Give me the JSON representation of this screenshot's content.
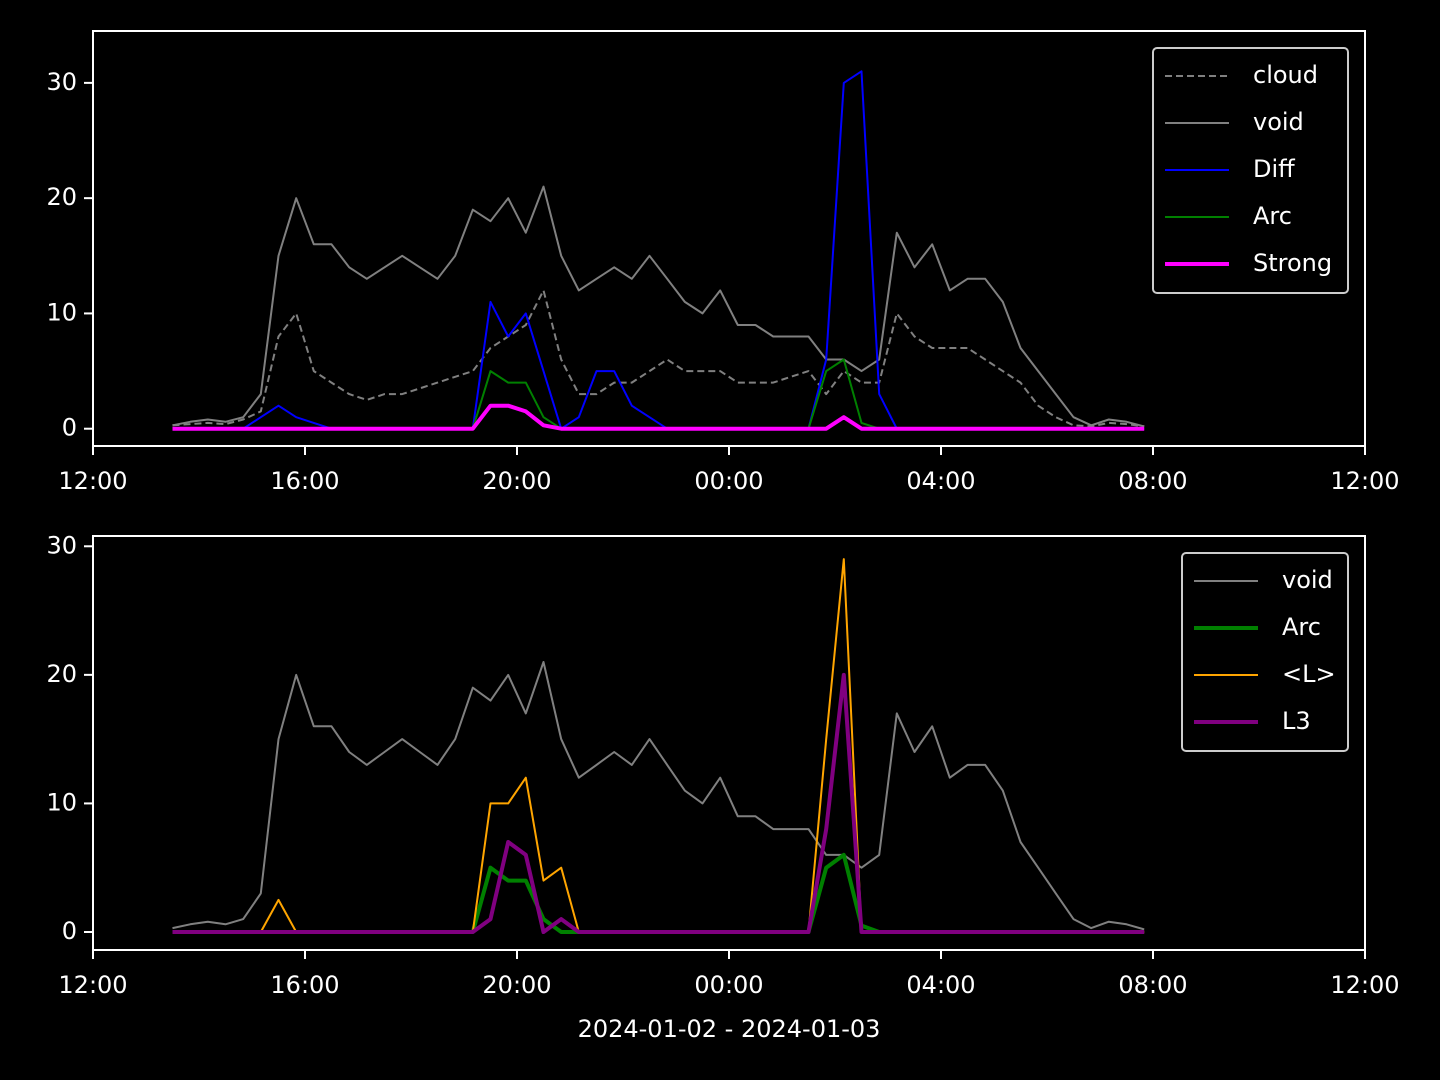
{
  "chart_data": [
    {
      "type": "line",
      "x": [
        "2024-01-02T13:30",
        "2024-01-02T13:50",
        "2024-01-02T14:10",
        "2024-01-02T14:30",
        "2024-01-02T14:50",
        "2024-01-02T15:10",
        "2024-01-02T15:30",
        "2024-01-02T15:50",
        "2024-01-02T16:10",
        "2024-01-02T16:30",
        "2024-01-02T16:50",
        "2024-01-02T17:10",
        "2024-01-02T17:30",
        "2024-01-02T17:50",
        "2024-01-02T18:10",
        "2024-01-02T18:30",
        "2024-01-02T18:50",
        "2024-01-02T19:10",
        "2024-01-02T19:30",
        "2024-01-02T19:50",
        "2024-01-02T20:10",
        "2024-01-02T20:30",
        "2024-01-02T20:50",
        "2024-01-02T21:10",
        "2024-01-02T21:30",
        "2024-01-02T21:50",
        "2024-01-02T22:10",
        "2024-01-02T22:30",
        "2024-01-02T22:50",
        "2024-01-02T23:10",
        "2024-01-02T23:30",
        "2024-01-02T23:50",
        "2024-01-03T00:10",
        "2024-01-03T00:30",
        "2024-01-03T00:50",
        "2024-01-03T01:10",
        "2024-01-03T01:30",
        "2024-01-03T01:50",
        "2024-01-03T02:10",
        "2024-01-03T02:30",
        "2024-01-03T02:50",
        "2024-01-03T03:10",
        "2024-01-03T03:30",
        "2024-01-03T03:50",
        "2024-01-03T04:10",
        "2024-01-03T04:30",
        "2024-01-03T04:50",
        "2024-01-03T05:10",
        "2024-01-03T05:30",
        "2024-01-03T05:50",
        "2024-01-03T06:10",
        "2024-01-03T06:30",
        "2024-01-03T06:50",
        "2024-01-03T07:10",
        "2024-01-03T07:30",
        "2024-01-03T07:50"
      ],
      "series": [
        {
          "name": "cloud",
          "color": "#808080",
          "linestyle": "dashed",
          "linewidth": 2,
          "values": [
            0.3,
            0.4,
            0.5,
            0.4,
            0.8,
            1.5,
            8,
            10,
            5,
            4,
            3,
            2.5,
            3,
            3,
            3.5,
            4,
            4.5,
            5,
            7,
            8,
            9,
            12,
            6,
            3,
            3,
            4,
            4,
            5,
            6,
            5,
            5,
            5,
            4,
            4,
            4,
            4.5,
            5,
            3,
            5,
            4,
            4,
            10,
            8,
            7,
            7,
            7,
            6,
            5,
            4,
            2,
            1,
            0.3,
            0.2,
            0.5,
            0.4,
            0.2
          ]
        },
        {
          "name": "void",
          "color": "#808080",
          "linestyle": "solid",
          "linewidth": 2,
          "values": [
            0.3,
            0.6,
            0.8,
            0.6,
            1,
            3,
            15,
            20,
            16,
            16,
            14,
            13,
            14,
            15,
            14,
            13,
            15,
            19,
            18,
            20,
            17,
            21,
            15,
            12,
            13,
            14,
            13,
            15,
            13,
            11,
            10,
            12,
            9,
            9,
            8,
            8,
            8,
            6,
            6,
            5,
            6,
            17,
            14,
            16,
            12,
            13,
            13,
            11,
            7,
            5,
            3,
            1,
            0.3,
            0.8,
            0.6,
            0.2
          ]
        },
        {
          "name": "Diff",
          "color": "#0000ff",
          "linestyle": "solid",
          "linewidth": 2,
          "values": [
            0,
            0,
            0,
            0,
            0,
            1,
            2,
            1,
            0.5,
            0,
            0,
            0,
            0,
            0,
            0,
            0,
            0,
            0,
            11,
            8,
            10,
            5,
            0,
            1,
            5,
            5,
            2,
            1,
            0,
            0,
            0,
            0,
            0,
            0,
            0,
            0,
            0,
            6,
            30,
            31,
            3,
            0,
            0,
            0,
            0,
            0,
            0,
            0,
            0,
            0,
            0,
            0,
            0,
            0,
            0,
            0
          ]
        },
        {
          "name": "Arc",
          "color": "#008000",
          "linestyle": "solid",
          "linewidth": 2,
          "values": [
            0,
            0,
            0,
            0,
            0,
            0,
            0,
            0,
            0,
            0,
            0,
            0,
            0,
            0,
            0,
            0,
            0,
            0,
            5,
            4,
            4,
            1,
            0,
            0,
            0,
            0,
            0,
            0,
            0,
            0,
            0,
            0,
            0,
            0,
            0,
            0,
            0,
            5,
            6,
            0.5,
            0,
            0,
            0,
            0,
            0,
            0,
            0,
            0,
            0,
            0,
            0,
            0,
            0,
            0,
            0,
            0
          ]
        },
        {
          "name": "Strong",
          "color": "#ff00ff",
          "linestyle": "solid",
          "linewidth": 4,
          "values": [
            0,
            0,
            0,
            0,
            0,
            0,
            0,
            0,
            0,
            0,
            0,
            0,
            0,
            0,
            0,
            0,
            0,
            0,
            2,
            2,
            1.5,
            0.3,
            0,
            0,
            0,
            0,
            0,
            0,
            0,
            0,
            0,
            0,
            0,
            0,
            0,
            0,
            0,
            0,
            1,
            0,
            0,
            0,
            0,
            0,
            0,
            0,
            0,
            0,
            0,
            0,
            0,
            0,
            0,
            0,
            0,
            0
          ]
        }
      ],
      "xlim": [
        "2024-01-02T12:00",
        "2024-01-03T12:00"
      ],
      "xticks": [
        {
          "value": "2024-01-02T12:00",
          "label": "12:00"
        },
        {
          "value": "2024-01-02T16:00",
          "label": "16:00"
        },
        {
          "value": "2024-01-02T20:00",
          "label": "20:00"
        },
        {
          "value": "2024-01-03T00:00",
          "label": "00:00"
        },
        {
          "value": "2024-01-03T04:00",
          "label": "04:00"
        },
        {
          "value": "2024-01-03T08:00",
          "label": "08:00"
        },
        {
          "value": "2024-01-03T12:00",
          "label": "12:00"
        }
      ],
      "ylim": [
        -1.5,
        34.5
      ],
      "yticks": [
        0,
        10,
        20,
        30
      ],
      "legend": "upper right"
    },
    {
      "type": "line",
      "x": [
        "2024-01-02T13:30",
        "2024-01-02T13:50",
        "2024-01-02T14:10",
        "2024-01-02T14:30",
        "2024-01-02T14:50",
        "2024-01-02T15:10",
        "2024-01-02T15:30",
        "2024-01-02T15:50",
        "2024-01-02T16:10",
        "2024-01-02T16:30",
        "2024-01-02T16:50",
        "2024-01-02T17:10",
        "2024-01-02T17:30",
        "2024-01-02T17:50",
        "2024-01-02T18:10",
        "2024-01-02T18:30",
        "2024-01-02T18:50",
        "2024-01-02T19:10",
        "2024-01-02T19:30",
        "2024-01-02T19:50",
        "2024-01-02T20:10",
        "2024-01-02T20:30",
        "2024-01-02T20:50",
        "2024-01-02T21:10",
        "2024-01-02T21:30",
        "2024-01-02T21:50",
        "2024-01-02T22:10",
        "2024-01-02T22:30",
        "2024-01-02T22:50",
        "2024-01-02T23:10",
        "2024-01-02T23:30",
        "2024-01-02T23:50",
        "2024-01-03T00:10",
        "2024-01-03T00:30",
        "2024-01-03T00:50",
        "2024-01-03T01:10",
        "2024-01-03T01:30",
        "2024-01-03T01:50",
        "2024-01-03T02:10",
        "2024-01-03T02:30",
        "2024-01-03T02:50",
        "2024-01-03T03:10",
        "2024-01-03T03:30",
        "2024-01-03T03:50",
        "2024-01-03T04:10",
        "2024-01-03T04:30",
        "2024-01-03T04:50",
        "2024-01-03T05:10",
        "2024-01-03T05:30",
        "2024-01-03T05:50",
        "2024-01-03T06:10",
        "2024-01-03T06:30",
        "2024-01-03T06:50",
        "2024-01-03T07:10",
        "2024-01-03T07:30",
        "2024-01-03T07:50"
      ],
      "series": [
        {
          "name": "void",
          "color": "#808080",
          "linestyle": "solid",
          "linewidth": 2,
          "values": [
            0.3,
            0.6,
            0.8,
            0.6,
            1,
            3,
            15,
            20,
            16,
            16,
            14,
            13,
            14,
            15,
            14,
            13,
            15,
            19,
            18,
            20,
            17,
            21,
            15,
            12,
            13,
            14,
            13,
            15,
            13,
            11,
            10,
            12,
            9,
            9,
            8,
            8,
            8,
            6,
            6,
            5,
            6,
            17,
            14,
            16,
            12,
            13,
            13,
            11,
            7,
            5,
            3,
            1,
            0.3,
            0.8,
            0.6,
            0.2
          ]
        },
        {
          "name": "Arc",
          "color": "#008000",
          "linestyle": "solid",
          "linewidth": 4,
          "values": [
            0,
            0,
            0,
            0,
            0,
            0,
            0,
            0,
            0,
            0,
            0,
            0,
            0,
            0,
            0,
            0,
            0,
            0,
            5,
            4,
            4,
            1,
            0,
            0,
            0,
            0,
            0,
            0,
            0,
            0,
            0,
            0,
            0,
            0,
            0,
            0,
            0,
            5,
            6,
            0.5,
            0,
            0,
            0,
            0,
            0,
            0,
            0,
            0,
            0,
            0,
            0,
            0,
            0,
            0,
            0,
            0
          ]
        },
        {
          "name": "<L>",
          "color": "#ffa500",
          "linestyle": "solid",
          "linewidth": 2,
          "values": [
            0,
            0,
            0,
            0,
            0,
            0,
            2.5,
            0,
            0,
            0,
            0,
            0,
            0,
            0,
            0,
            0,
            0,
            0,
            10,
            10,
            12,
            4,
            5,
            0,
            0,
            0,
            0,
            0,
            0,
            0,
            0,
            0,
            0,
            0,
            0,
            0,
            0,
            15,
            29,
            0,
            0,
            0,
            0,
            0,
            0,
            0,
            0,
            0,
            0,
            0,
            0,
            0,
            0,
            0,
            0,
            0
          ]
        },
        {
          "name": "L3",
          "color": "#800080",
          "linestyle": "solid",
          "linewidth": 4,
          "values": [
            0,
            0,
            0,
            0,
            0,
            0,
            0,
            0,
            0,
            0,
            0,
            0,
            0,
            0,
            0,
            0,
            0,
            0,
            1,
            7,
            6,
            0,
            1,
            0,
            0,
            0,
            0,
            0,
            0,
            0,
            0,
            0,
            0,
            0,
            0,
            0,
            0,
            8,
            20,
            0,
            0,
            0,
            0,
            0,
            0,
            0,
            0,
            0,
            0,
            0,
            0,
            0,
            0,
            0,
            0,
            0
          ]
        }
      ],
      "xlim": [
        "2024-01-02T12:00",
        "2024-01-03T12:00"
      ],
      "xticks": [
        {
          "value": "2024-01-02T12:00",
          "label": "12:00"
        },
        {
          "value": "2024-01-02T16:00",
          "label": "16:00"
        },
        {
          "value": "2024-01-02T20:00",
          "label": "20:00"
        },
        {
          "value": "2024-01-03T00:00",
          "label": "00:00"
        },
        {
          "value": "2024-01-03T04:00",
          "label": "04:00"
        },
        {
          "value": "2024-01-03T08:00",
          "label": "08:00"
        },
        {
          "value": "2024-01-03T12:00",
          "label": "12:00"
        }
      ],
      "ylim": [
        -1.4,
        30.8
      ],
      "yticks": [
        0,
        10,
        20,
        30
      ],
      "legend": "upper right",
      "xlabel": "2024-01-02 - 2024-01-03"
    }
  ]
}
